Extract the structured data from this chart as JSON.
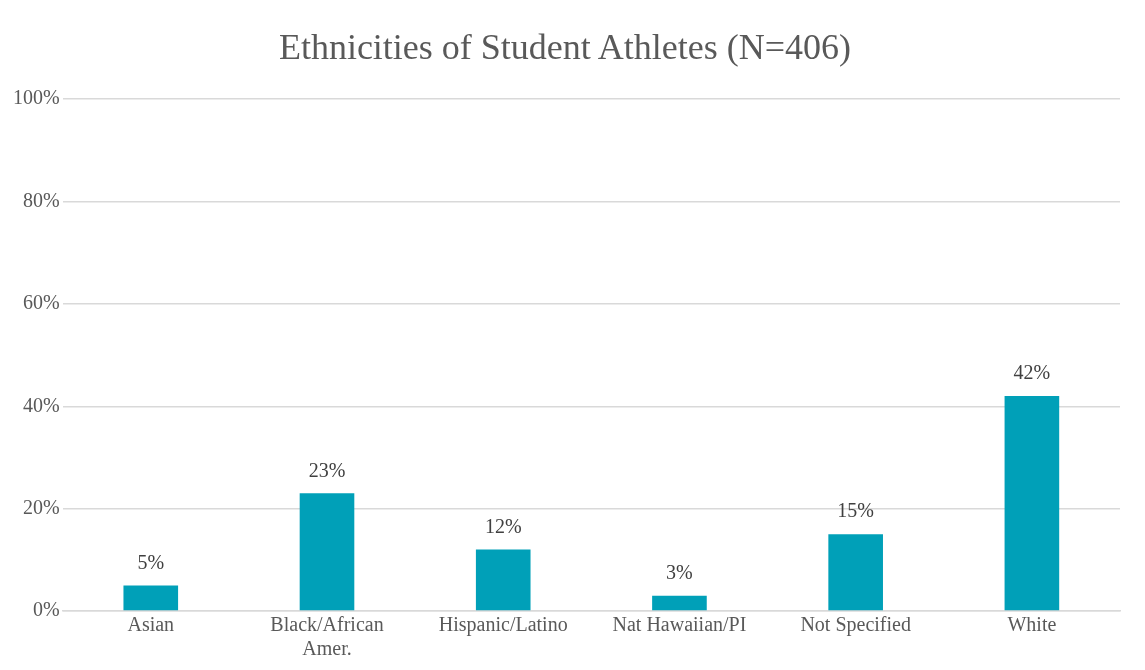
{
  "chart_data": {
    "type": "bar",
    "title": "Ethnicities of Student Athletes (N=406)",
    "categories": [
      "Asian",
      "Black/African Amer.",
      "Hispanic/Latino",
      "Nat Hawaiian/PI",
      "Not Specified",
      "White"
    ],
    "values": [
      5,
      23,
      12,
      3,
      15,
      42
    ],
    "color": "#00a0b8",
    "value_labels": [
      "5%",
      "23%",
      "12%",
      "3%",
      "15%",
      "42%"
    ],
    "ylim": [
      0,
      100
    ],
    "yticks": [
      {
        "value": 0,
        "label": "0%"
      },
      {
        "value": 20,
        "label": "20%"
      },
      {
        "value": 40,
        "label": "40%"
      },
      {
        "value": 60,
        "label": "60%"
      },
      {
        "value": 80,
        "label": "80%"
      },
      {
        "value": 100,
        "label": "100%"
      }
    ],
    "grid": "y",
    "legend": false
  }
}
